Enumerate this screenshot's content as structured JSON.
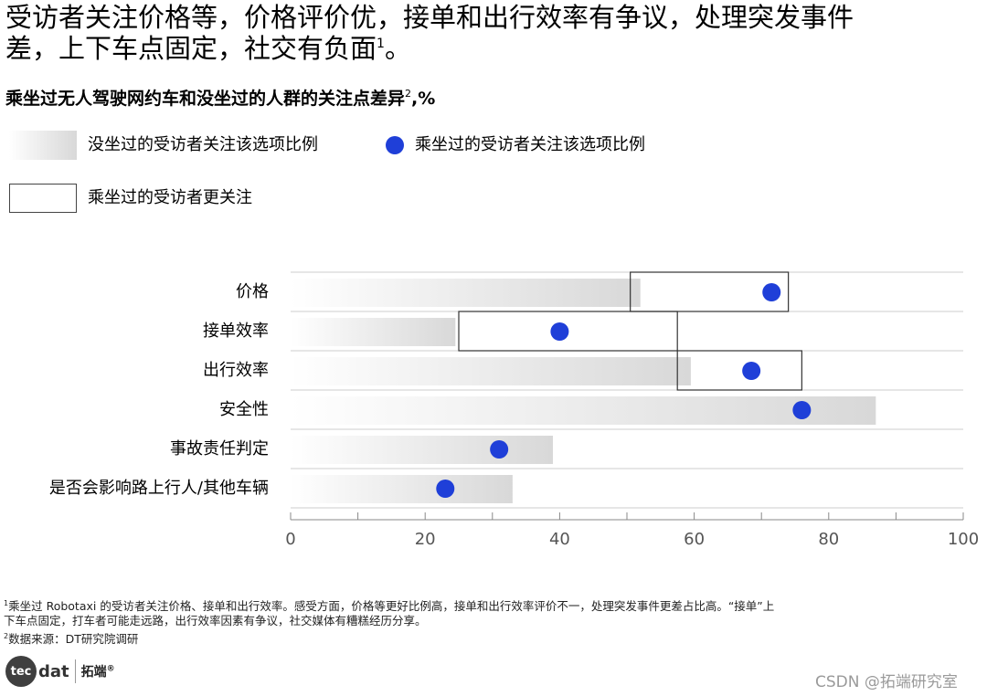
{
  "title": {
    "line1": "受访者关注价格等，价格评价优，接单和出行效率有争议，处理突发事件",
    "line2": "差，上下车点固定，社交有负面",
    "sup": "1",
    "end": "。"
  },
  "subtitle": {
    "text": "乘坐过无人驾驶网约车和没坐过的人群的关注点差异",
    "sup": "2",
    "unit": ",%"
  },
  "legend": {
    "not_ridden": "没坐过的受访者关注该选项比例",
    "ridden": "乘坐过的受访者关注该选项比例",
    "more_attention": "乘坐过的受访者更关注"
  },
  "colors": {
    "dot": "#1f3fd8",
    "bar_end": "#d8d8d8",
    "grid": "#cccccc",
    "axis": "#888888"
  },
  "chart_data": {
    "type": "bar",
    "orientation": "horizontal",
    "categories": [
      "价格",
      "接单效率",
      "出行效率",
      "安全性",
      "事故责任判定",
      "是否会影响路上行人/其他车辆"
    ],
    "series": [
      {
        "name": "没坐过的受访者关注该选项比例",
        "values": [
          52,
          24.5,
          59.5,
          87,
          39,
          33
        ]
      },
      {
        "name": "乘坐过的受访者关注该选项比例",
        "values": [
          71.5,
          40,
          68.5,
          76,
          31,
          23
        ]
      }
    ],
    "highlight_boxes": [
      {
        "category": "价格",
        "from": 50.5,
        "to": 74,
        "label": "乘坐过的受访者更关注"
      },
      {
        "category": "接单效率",
        "from": 25,
        "to": 57.5,
        "label": "乘坐过的受访者更关注"
      },
      {
        "category": "出行效率",
        "from": 57.5,
        "to": 76,
        "label": "乘坐过的受访者更关注"
      }
    ],
    "xlim": [
      0,
      100
    ],
    "xticks": [
      0,
      20,
      40,
      60,
      80,
      100
    ],
    "grid": true,
    "legend": "top-left"
  },
  "footnotes": {
    "note1_sup": "1",
    "note1_line1": "乘坐过 Robotaxi 的受访者关注价格、接单和出行效率。感受方面，价格等更好比例高，接单和出行效率评价不一，处理突发事件更差占比高。“接单”上",
    "note1_line2": "下车点固定，打车者可能走远路，出行效率因素有争议，社交媒体有糟糕经历分享。",
    "note2_sup": "2",
    "note2": "数据来源：DT研究院调研"
  },
  "logo": {
    "circle": "tec",
    "dat": "dat",
    "cn": "拓端",
    "reg": "®"
  },
  "watermark": "CSDN @拓端研究室"
}
